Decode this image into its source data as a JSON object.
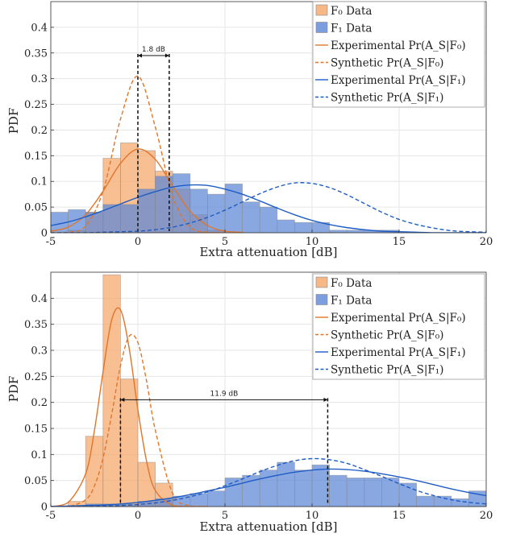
{
  "chart_data": [
    {
      "type": "bar",
      "xlabel": "Extra attenuation [dB]",
      "ylabel": "PDF",
      "xlim": [
        -5,
        20
      ],
      "ylim": [
        0,
        0.45
      ],
      "xticks": [
        -5,
        0,
        5,
        10,
        15,
        20
      ],
      "yticks": [
        0,
        0.05,
        0.1,
        0.15,
        0.2,
        0.25,
        0.3,
        0.35,
        0.4
      ],
      "grid": true,
      "legend_position": "top-right",
      "annotation": {
        "label": "1.8 dB",
        "x_from": 0,
        "x_to": 1.8,
        "y": 0.345
      },
      "histograms": [
        {
          "name": "F₀ Data",
          "color": "#f5a66a",
          "bin_width": 1,
          "bins": [
            -4,
            -3,
            -2,
            -1,
            0,
            1,
            2,
            3,
            4
          ],
          "values": [
            0.005,
            0.04,
            0.145,
            0.175,
            0.16,
            0.12,
            0.085,
            0.035,
            0.005
          ]
        },
        {
          "name": "F₁ Data",
          "color": "#5b86d6",
          "bin_width": 1,
          "bins": [
            -5,
            -4,
            -3,
            -2,
            -1,
            0,
            1,
            2,
            3,
            4,
            5,
            6,
            7,
            8,
            9,
            10,
            11,
            12,
            13,
            14,
            15,
            16,
            17,
            18,
            19
          ],
          "values": [
            0.04,
            0.045,
            0.04,
            0.055,
            0.055,
            0.085,
            0.11,
            0.115,
            0.085,
            0.075,
            0.095,
            0.06,
            0.05,
            0.025,
            0.02,
            0.02,
            0.005,
            0.005,
            0.005,
            0.005,
            0,
            0,
            0,
            0,
            0
          ]
        }
      ],
      "series": [
        {
          "name": "Experimental Pr(A_S|F₀)",
          "color": "#e0762a",
          "dash": "solid",
          "x": [
            -5,
            -4,
            -3,
            -2,
            -1,
            0,
            1,
            2,
            3,
            4,
            5,
            6
          ],
          "values": [
            0.003,
            0.011,
            0.035,
            0.081,
            0.135,
            0.163,
            0.143,
            0.091,
            0.042,
            0.014,
            0.003,
            0.001
          ]
        },
        {
          "name": "Synthetic Pr(A_S|F₀)",
          "color": "#e0762a",
          "dash": "dashed",
          "x": [
            -5,
            -4,
            -3,
            -2,
            -1,
            0,
            1,
            2,
            3,
            4,
            5
          ],
          "values": [
            0.0,
            0.001,
            0.013,
            0.081,
            0.221,
            0.305,
            0.206,
            0.07,
            0.011,
            0.001,
            0.0
          ]
        },
        {
          "name": "Experimental Pr(A_S|F₁)",
          "color": "#1f5cc4",
          "dash": "solid",
          "x": [
            -5,
            -4,
            -3,
            -2,
            -1,
            0,
            1,
            2,
            3,
            4,
            5,
            6,
            7,
            8,
            9,
            10,
            11,
            12,
            13,
            14,
            15,
            16,
            17,
            18,
            19,
            20
          ],
          "values": [
            0.014,
            0.021,
            0.031,
            0.043,
            0.056,
            0.069,
            0.08,
            0.089,
            0.093,
            0.092,
            0.085,
            0.075,
            0.062,
            0.048,
            0.035,
            0.024,
            0.016,
            0.01,
            0.006,
            0.003,
            0.002,
            0.001,
            0.0,
            0.0,
            0.0,
            0.0
          ]
        },
        {
          "name": "Synthetic Pr(A_S|F₁)",
          "color": "#1f5cc4",
          "dash": "dashed",
          "x": [
            -5,
            -4,
            -3,
            -2,
            -1,
            0,
            1,
            2,
            3,
            4,
            5,
            6,
            7,
            8,
            9,
            10,
            11,
            12,
            13,
            14,
            15,
            16,
            17,
            18,
            19,
            20
          ],
          "values": [
            0.0,
            0.0,
            0.0,
            0.001,
            0.002,
            0.003,
            0.006,
            0.011,
            0.019,
            0.03,
            0.044,
            0.06,
            0.076,
            0.089,
            0.097,
            0.096,
            0.088,
            0.074,
            0.057,
            0.04,
            0.026,
            0.016,
            0.009,
            0.004,
            0.002,
            0.001
          ]
        }
      ]
    },
    {
      "type": "bar",
      "xlabel": "Extra attenuation [dB]",
      "ylabel": "PDF",
      "xlim": [
        -5,
        20
      ],
      "ylim": [
        0,
        0.45
      ],
      "xticks": [
        -5,
        0,
        5,
        10,
        15,
        20
      ],
      "yticks": [
        0,
        0.05,
        0.1,
        0.15,
        0.2,
        0.25,
        0.3,
        0.35,
        0.4
      ],
      "grid": true,
      "legend_position": "top-right",
      "annotation": {
        "label": "11.9 dB",
        "x_from": -1,
        "x_to": 10.9,
        "y": 0.205
      },
      "histograms": [
        {
          "name": "F₀ Data",
          "color": "#f5a66a",
          "bin_width": 1,
          "bins": [
            -4,
            -3,
            -2,
            -1,
            0,
            1
          ],
          "values": [
            0.01,
            0.135,
            0.445,
            0.245,
            0.085,
            0.045
          ]
        },
        {
          "name": "F₁ Data",
          "color": "#5b86d6",
          "bin_width": 1,
          "bins": [
            -3,
            -2,
            -1,
            0,
            1,
            2,
            3,
            4,
            5,
            6,
            7,
            8,
            9,
            10,
            11,
            12,
            13,
            14,
            15,
            16,
            17,
            18,
            19
          ],
          "values": [
            0.005,
            0.005,
            0.005,
            0.01,
            0.015,
            0.02,
            0.025,
            0.03,
            0.055,
            0.06,
            0.07,
            0.085,
            0.07,
            0.08,
            0.06,
            0.055,
            0.055,
            0.055,
            0.045,
            0.02,
            0.02,
            0.015,
            0.03
          ]
        }
      ],
      "series": [
        {
          "name": "Experimental Pr(A_S|F₀)",
          "color": "#e0762a",
          "dash": "solid",
          "x": [
            -5,
            -4,
            -3,
            -2.5,
            -2,
            -1.5,
            -1,
            -0.5,
            0,
            0.5,
            1,
            2,
            3,
            4
          ],
          "values": [
            0.0,
            0.008,
            0.063,
            0.145,
            0.259,
            0.359,
            0.378,
            0.304,
            0.186,
            0.087,
            0.031,
            0.002,
            0.0,
            0.0
          ]
        },
        {
          "name": "Synthetic Pr(A_S|F₀)",
          "color": "#e0762a",
          "dash": "dashed",
          "x": [
            -5,
            -4,
            -3,
            -2.5,
            -2,
            -1.5,
            -1,
            -0.5,
            0,
            0.5,
            1,
            2,
            3,
            4
          ],
          "values": [
            0.0,
            0.0,
            0.013,
            0.039,
            0.093,
            0.178,
            0.27,
            0.327,
            0.315,
            0.241,
            0.147,
            0.025,
            0.001,
            0.0
          ]
        },
        {
          "name": "Experimental Pr(A_S|F₁)",
          "color": "#1f5cc4",
          "dash": "solid",
          "x": [
            -5,
            -4,
            -3,
            -2,
            -1,
            0,
            1,
            2,
            3,
            4,
            5,
            6,
            7,
            8,
            9,
            10,
            11,
            12,
            13,
            14,
            15,
            16,
            17,
            18,
            19,
            20
          ],
          "values": [
            0.0,
            0.001,
            0.002,
            0.003,
            0.005,
            0.008,
            0.012,
            0.017,
            0.023,
            0.03,
            0.037,
            0.045,
            0.053,
            0.06,
            0.066,
            0.07,
            0.072,
            0.071,
            0.068,
            0.063,
            0.057,
            0.05,
            0.042,
            0.034,
            0.027,
            0.021
          ]
        },
        {
          "name": "Synthetic Pr(A_S|F₁)",
          "color": "#1f5cc4",
          "dash": "dashed",
          "x": [
            -5,
            -4,
            -3,
            -2,
            -1,
            0,
            1,
            2,
            3,
            4,
            5,
            6,
            7,
            8,
            9,
            10,
            11,
            12,
            13,
            14,
            15,
            16,
            17,
            18,
            19,
            20
          ],
          "values": [
            0.0,
            0.0,
            0.0,
            0.001,
            0.002,
            0.004,
            0.007,
            0.012,
            0.019,
            0.028,
            0.04,
            0.053,
            0.067,
            0.079,
            0.088,
            0.092,
            0.09,
            0.083,
            0.071,
            0.058,
            0.044,
            0.031,
            0.021,
            0.013,
            0.008,
            0.005
          ]
        }
      ]
    }
  ]
}
